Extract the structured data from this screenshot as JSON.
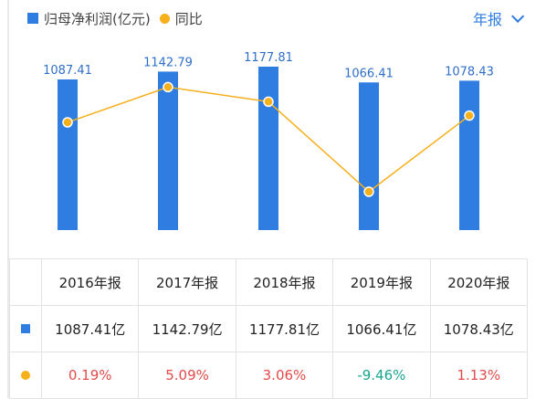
{
  "legend": {
    "bar_label": "归母净利润(亿元)",
    "line_label": "同比"
  },
  "period_selector": "年报",
  "chart_data": {
    "type": "bar",
    "categories": [
      "2016年报",
      "2017年报",
      "2018年报",
      "2019年报",
      "2020年报"
    ],
    "series": [
      {
        "name": "归母净利润(亿元)",
        "type": "bar",
        "values": [
          1087.41,
          1142.79,
          1177.81,
          1066.41,
          1078.43
        ],
        "labels": [
          "1087.41",
          "1142.79",
          "1177.81",
          "1066.41",
          "1078.43"
        ],
        "color": "#2f7de1"
      },
      {
        "name": "同比",
        "type": "line",
        "values": [
          0.19,
          5.09,
          3.06,
          -9.46,
          1.13
        ],
        "color": "#f5b01c"
      }
    ]
  },
  "table": {
    "headers": [
      "2016年报",
      "2017年报",
      "2018年报",
      "2019年报",
      "2020年报"
    ],
    "profit_row": [
      "1087.41亿",
      "1142.79亿",
      "1177.81亿",
      "1066.41亿",
      "1078.43亿"
    ],
    "yoy_row": [
      "0.19%",
      "5.09%",
      "3.06%",
      "-9.46%",
      "1.13%"
    ]
  },
  "colors": {
    "bar": "#2f7de1",
    "line": "#f5b01c",
    "positive": "#e34a4a",
    "negative": "#1aa58c"
  }
}
